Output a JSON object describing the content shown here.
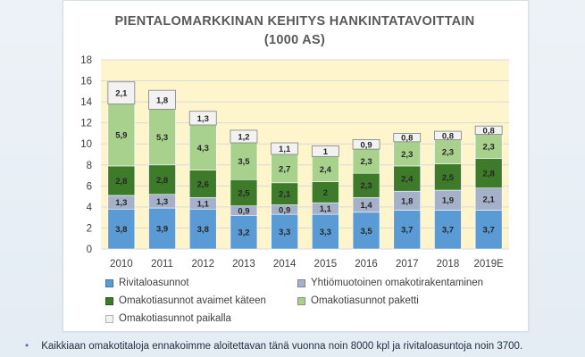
{
  "chart_data": {
    "type": "bar",
    "stacked": true,
    "title_lines": [
      "PIENTALOMARKKINAN KEHITYS HANKINTATAVOITTAIN",
      "(1000 AS)"
    ],
    "categories": [
      "2010",
      "2011",
      "2012",
      "2013",
      "2014",
      "2015",
      "2016",
      "2017",
      "2018",
      "2019E"
    ],
    "ylim": [
      0,
      18
    ],
    "yticks": [
      0,
      2,
      4,
      6,
      8,
      10,
      12,
      14,
      16,
      18
    ],
    "grid": true,
    "legend_position": "bottom",
    "series": [
      {
        "name": "Rivitaloasunnot",
        "color": "#5b9bd5",
        "values": [
          3.8,
          3.9,
          3.8,
          3.2,
          3.3,
          3.3,
          3.5,
          3.7,
          3.7,
          3.7
        ],
        "labels": [
          "3,8",
          "3,9",
          "3,8",
          "3,2",
          "3,3",
          "3,3",
          "3,5",
          "3,7",
          "3,7",
          "3,7"
        ]
      },
      {
        "name": "Yhtiömuotoinen omakotirakentaminen",
        "color": "#a5b1c8",
        "values": [
          1.3,
          1.3,
          1.1,
          0.9,
          0.9,
          1.1,
          1.4,
          1.8,
          1.9,
          2.1
        ],
        "labels": [
          "1,3",
          "1,3",
          "1,1",
          "0,9",
          "0,9",
          "1,1",
          "1,4",
          "1,8",
          "1,9",
          "2,1"
        ]
      },
      {
        "name": "Omakotiasunnot avaimet käteen",
        "color": "#3d7a2a",
        "values": [
          2.8,
          2.8,
          2.6,
          2.5,
          2.1,
          2.0,
          2.3,
          2.4,
          2.5,
          2.8
        ],
        "labels": [
          "2,8",
          "2,8",
          "2,6",
          "2,5",
          "2,1",
          "2",
          "2,3",
          "2,4",
          "2,5",
          "2,8"
        ]
      },
      {
        "name": "Omakotiasunnot paketti",
        "color": "#a9d18e",
        "values": [
          5.9,
          5.3,
          4.3,
          3.5,
          2.7,
          2.4,
          2.3,
          2.3,
          2.3,
          2.3
        ],
        "labels": [
          "5,9",
          "5,3",
          "4,3",
          "3,5",
          "2,7",
          "2,4",
          "2,3",
          "2,3",
          "2,3",
          "2,3"
        ]
      },
      {
        "name": "Omakotiasunnot paikalla",
        "color": "#f2f2f2",
        "values": [
          2.1,
          1.8,
          1.3,
          1.2,
          1.1,
          1.0,
          0.9,
          0.8,
          0.8,
          0.8
        ],
        "labels": [
          "2,1",
          "1,8",
          "1,3",
          "1,2",
          "1,1",
          "1",
          "0,9",
          "0,8",
          "0,8",
          "0,8"
        ]
      }
    ]
  },
  "footnote": "Kaikkiaan omakotitaloja ennakoimme aloitettavan tänä vuonna noin 8000 kpl ja rivitaloasuntoja noin 3700.",
  "bullet_icon": "bullet-dot-icon"
}
